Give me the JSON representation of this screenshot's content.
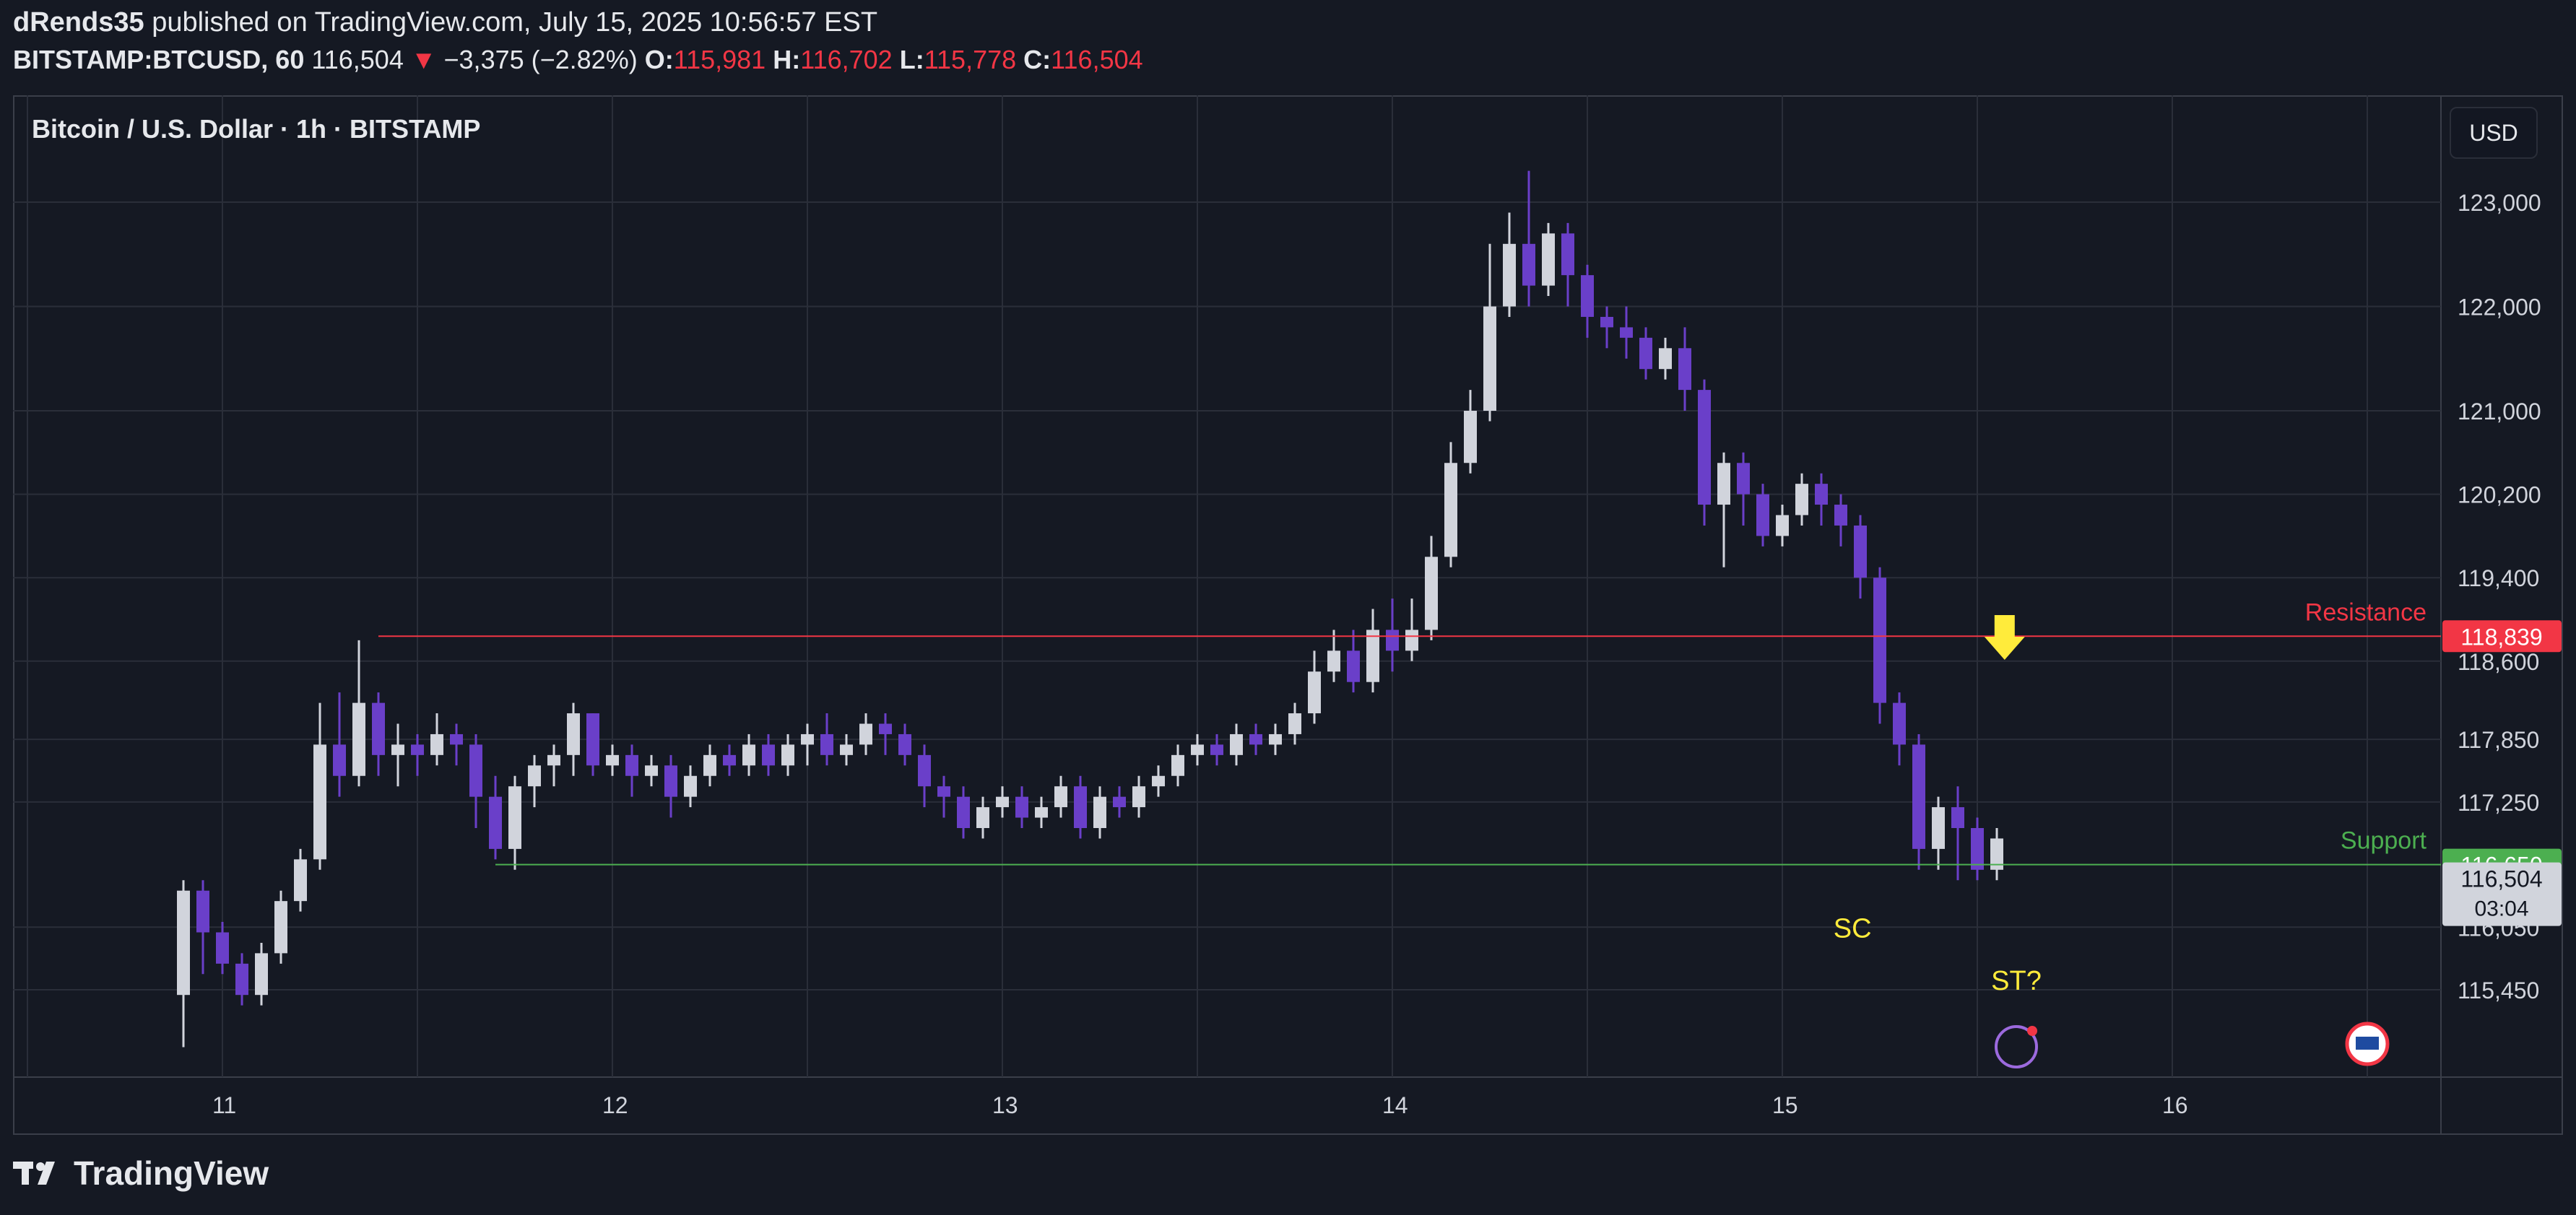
{
  "header": {
    "publisher": "dRends35",
    "published_text": "published on TradingView.com, July 15, 2025 10:56:57 EST",
    "symbol": "BITSTAMP:BTCUSD, 60",
    "last": "116,504",
    "change": "−3,375 (−2.82%)",
    "o_label": "O:",
    "o_value": "115,981",
    "h_label": "H:",
    "h_value": "116,702",
    "l_label": "L:",
    "l_value": "115,778",
    "c_label": "C:",
    "c_value": "116,504"
  },
  "chart_title": "Bitcoin / U.S. Dollar · 1h · BITSTAMP",
  "currency_button": "USD",
  "footer": {
    "brand": "TradingView"
  },
  "colors": {
    "background": "#151923",
    "grid": "#2a2e39",
    "bull_candle": "#d1d4dc",
    "bear_candle": "#6a3fc9",
    "resistance": "#f23645",
    "support": "#4caf50",
    "annotation": "#ffeb3b"
  },
  "chart_data": {
    "type": "candlestick",
    "x_tick_labels": [
      "11",
      "12",
      "13",
      "14",
      "15",
      "16"
    ],
    "y_tick_labels": [
      "123,000",
      "122,000",
      "121,000",
      "120,200",
      "119,400",
      "118,600",
      "117,850",
      "117,250",
      "116,050",
      "115,450"
    ],
    "y_range": [
      114,
      850,
      123,
      500
    ],
    "grid": true,
    "horizontal_lines": [
      {
        "label": "Resistance",
        "value": 118839,
        "price_tag": "118,839",
        "color": "#f23645"
      },
      {
        "label": "Support",
        "value": 116650,
        "price_tag": "116,650",
        "color": "#4caf50"
      }
    ],
    "current_price": {
      "value": 116504,
      "price_tag": "116,504",
      "countdown": "03:04"
    },
    "annotations": [
      {
        "text": "SC",
        "day": 15.18,
        "price": 115950
      },
      {
        "text": "ST?",
        "day": 15.6,
        "price": 115450
      }
    ],
    "candles": [
      [
        10.9,
        115400,
        116400,
        114900,
        116500
      ],
      [
        10.95,
        116400,
        116000,
        115600,
        116500
      ],
      [
        11.0,
        116000,
        115700,
        115600,
        116100
      ],
      [
        11.05,
        115700,
        115400,
        115300,
        115800
      ],
      [
        11.1,
        115400,
        115800,
        115300,
        115900
      ],
      [
        11.15,
        115800,
        116300,
        115700,
        116400
      ],
      [
        11.2,
        116300,
        116700,
        116200,
        116800
      ],
      [
        11.25,
        116700,
        117800,
        116600,
        118200
      ],
      [
        11.3,
        117800,
        117500,
        117300,
        118300
      ],
      [
        11.35,
        117500,
        118200,
        117400,
        118800
      ],
      [
        11.4,
        118200,
        117700,
        117500,
        118300
      ],
      [
        11.45,
        117700,
        117800,
        117400,
        118000
      ],
      [
        11.5,
        117800,
        117700,
        117500,
        117900
      ],
      [
        11.55,
        117700,
        117900,
        117600,
        118100
      ],
      [
        11.6,
        117900,
        117800,
        117600,
        118000
      ],
      [
        11.65,
        117800,
        117300,
        117000,
        117900
      ],
      [
        11.7,
        117300,
        116800,
        116700,
        117500
      ],
      [
        11.75,
        116800,
        117400,
        116600,
        117500
      ],
      [
        11.8,
        117400,
        117600,
        117200,
        117700
      ],
      [
        11.85,
        117600,
        117700,
        117400,
        117800
      ],
      [
        11.9,
        117700,
        118100,
        117500,
        118200
      ],
      [
        11.95,
        118100,
        117600,
        117500,
        118100
      ],
      [
        12.0,
        117600,
        117700,
        117500,
        117800
      ],
      [
        12.05,
        117700,
        117500,
        117300,
        117800
      ],
      [
        12.1,
        117500,
        117600,
        117400,
        117700
      ],
      [
        12.15,
        117600,
        117300,
        117100,
        117700
      ],
      [
        12.2,
        117300,
        117500,
        117200,
        117600
      ],
      [
        12.25,
        117500,
        117700,
        117400,
        117800
      ],
      [
        12.3,
        117700,
        117600,
        117500,
        117800
      ],
      [
        12.35,
        117600,
        117800,
        117500,
        117900
      ],
      [
        12.4,
        117800,
        117600,
        117500,
        117900
      ],
      [
        12.45,
        117600,
        117800,
        117500,
        117900
      ],
      [
        12.5,
        117800,
        117900,
        117600,
        118000
      ],
      [
        12.55,
        117900,
        117700,
        117600,
        118100
      ],
      [
        12.6,
        117700,
        117800,
        117600,
        117900
      ],
      [
        12.65,
        117800,
        118000,
        117700,
        118100
      ],
      [
        12.7,
        118000,
        117900,
        117700,
        118100
      ],
      [
        12.75,
        117900,
        117700,
        117600,
        118000
      ],
      [
        12.8,
        117700,
        117400,
        117200,
        117800
      ],
      [
        12.85,
        117400,
        117300,
        117100,
        117500
      ],
      [
        12.9,
        117300,
        117000,
        116900,
        117400
      ],
      [
        12.95,
        117000,
        117200,
        116900,
        117300
      ],
      [
        13.0,
        117200,
        117300,
        117100,
        117400
      ],
      [
        13.05,
        117300,
        117100,
        117000,
        117400
      ],
      [
        13.1,
        117100,
        117200,
        117000,
        117300
      ],
      [
        13.15,
        117200,
        117400,
        117100,
        117500
      ],
      [
        13.2,
        117400,
        117000,
        116900,
        117500
      ],
      [
        13.25,
        117000,
        117300,
        116900,
        117400
      ],
      [
        13.3,
        117300,
        117200,
        117100,
        117400
      ],
      [
        13.35,
        117200,
        117400,
        117100,
        117500
      ],
      [
        13.4,
        117400,
        117500,
        117300,
        117600
      ],
      [
        13.45,
        117500,
        117700,
        117400,
        117800
      ],
      [
        13.5,
        117700,
        117800,
        117600,
        117900
      ],
      [
        13.55,
        117800,
        117700,
        117600,
        117900
      ],
      [
        13.6,
        117700,
        117900,
        117600,
        118000
      ],
      [
        13.65,
        117900,
        117800,
        117700,
        118000
      ],
      [
        13.7,
        117800,
        117900,
        117700,
        118000
      ],
      [
        13.75,
        117900,
        118100,
        117800,
        118200
      ],
      [
        13.8,
        118100,
        118500,
        118000,
        118700
      ],
      [
        13.85,
        118500,
        118700,
        118400,
        118900
      ],
      [
        13.9,
        118700,
        118400,
        118300,
        118900
      ],
      [
        13.95,
        118400,
        118900,
        118300,
        119100
      ],
      [
        14.0,
        118900,
        118700,
        118500,
        119200
      ],
      [
        14.05,
        118700,
        118900,
        118600,
        119200
      ],
      [
        14.1,
        118900,
        119600,
        118800,
        119800
      ],
      [
        14.15,
        119600,
        120500,
        119500,
        120700
      ],
      [
        14.2,
        120500,
        121000,
        120400,
        121200
      ],
      [
        14.25,
        121000,
        122000,
        120900,
        122600
      ],
      [
        14.3,
        122000,
        122600,
        121900,
        122900
      ],
      [
        14.35,
        122600,
        122200,
        122000,
        123300
      ],
      [
        14.4,
        122200,
        122700,
        122100,
        122800
      ],
      [
        14.45,
        122700,
        122300,
        122000,
        122800
      ],
      [
        14.5,
        122300,
        121900,
        121700,
        122400
      ],
      [
        14.55,
        121900,
        121800,
        121600,
        122000
      ],
      [
        14.6,
        121800,
        121700,
        121500,
        122000
      ],
      [
        14.65,
        121700,
        121400,
        121300,
        121800
      ],
      [
        14.7,
        121400,
        121600,
        121300,
        121700
      ],
      [
        14.75,
        121600,
        121200,
        121000,
        121800
      ],
      [
        14.8,
        121200,
        120100,
        119900,
        121300
      ],
      [
        14.85,
        120100,
        120500,
        119500,
        120600
      ],
      [
        14.9,
        120500,
        120200,
        119900,
        120600
      ],
      [
        14.95,
        120200,
        119800,
        119700,
        120300
      ],
      [
        15.0,
        119800,
        120000,
        119700,
        120100
      ],
      [
        15.05,
        120000,
        120300,
        119900,
        120400
      ],
      [
        15.1,
        120300,
        120100,
        119900,
        120400
      ],
      [
        15.15,
        120100,
        119900,
        119700,
        120200
      ],
      [
        15.2,
        119900,
        119400,
        119200,
        120000
      ],
      [
        15.25,
        119400,
        118200,
        118000,
        119500
      ],
      [
        15.3,
        118200,
        117800,
        117600,
        118300
      ],
      [
        15.35,
        117800,
        116800,
        116600,
        117900
      ],
      [
        15.4,
        116800,
        117200,
        116600,
        117300
      ],
      [
        15.45,
        117200,
        117000,
        116500,
        117400
      ],
      [
        15.5,
        117000,
        116600,
        116500,
        117100
      ],
      [
        15.55,
        116600,
        116900,
        116500,
        117000
      ]
    ]
  }
}
